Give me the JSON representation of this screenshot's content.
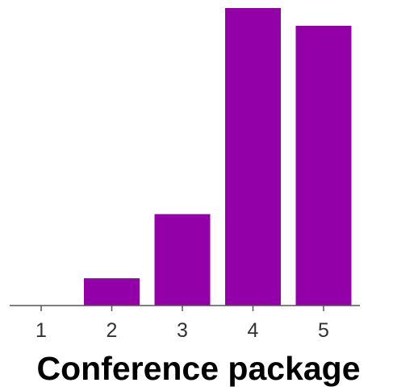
{
  "chart_data": {
    "type": "bar",
    "title": "Conference package",
    "categories": [
      "1",
      "2",
      "3",
      "4",
      "5"
    ],
    "values": [
      0,
      2,
      6.7,
      21.8,
      20.5
    ],
    "ylim": [
      0,
      21.8
    ],
    "xlabel": "",
    "ylabel": "",
    "grid": false,
    "legend": "none",
    "bar_color": "#9400a8",
    "axis_color": "#555555"
  }
}
